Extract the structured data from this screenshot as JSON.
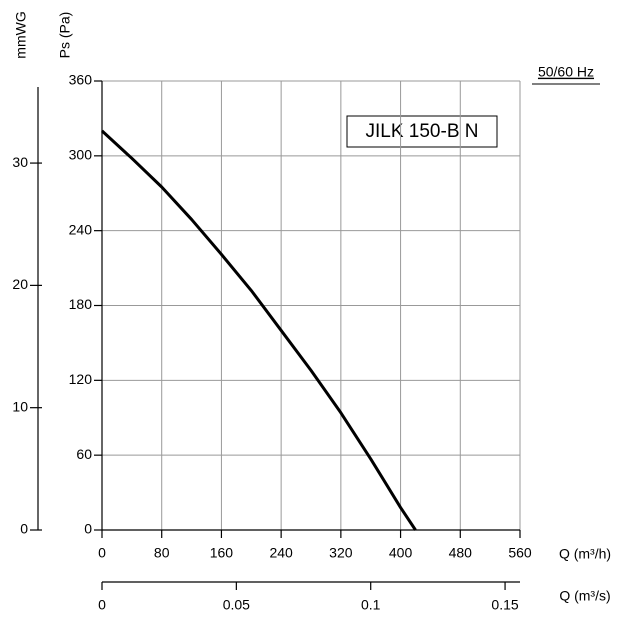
{
  "chart_data": {
    "type": "line",
    "title": "JILK 150-B N",
    "subtitle": "50/60 Hz",
    "x_label": "Q (m³/h)",
    "x2_label": "Q (m³/s)",
    "y_label": "Ps (Pa)",
    "y2_label": "mmWG",
    "x": [
      0,
      40,
      80,
      120,
      160,
      200,
      240,
      280,
      320,
      360,
      400,
      420
    ],
    "series": [
      {
        "color": "#000000",
        "values": [
          320,
          298,
          275,
          249,
          221,
          192,
          160,
          128,
          94,
          57,
          18,
          0
        ]
      }
    ],
    "xlim": [
      0,
      560
    ],
    "xticks": [
      0,
      80,
      160,
      240,
      320,
      400,
      480,
      560
    ],
    "ylim": [
      0,
      360
    ],
    "yticks": [
      0,
      60,
      120,
      180,
      240,
      300,
      360
    ],
    "y2lim": [
      0,
      36.71
    ],
    "y2ticks": [
      0,
      10,
      20,
      30
    ],
    "x2lim": [
      0,
      0.15556
    ],
    "x2ticks": [
      0,
      0.05,
      0.1,
      0.15
    ],
    "grid": true
  }
}
